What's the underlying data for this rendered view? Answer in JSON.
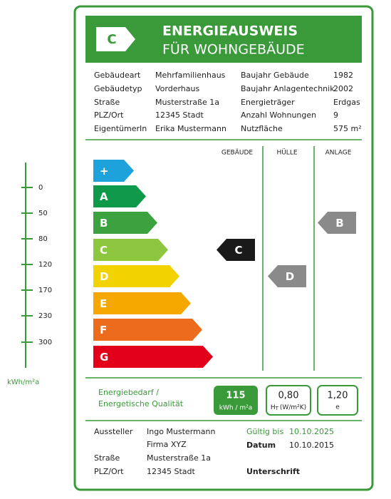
{
  "scale": {
    "ticks": [
      "0",
      "50",
      "80",
      "120",
      "170",
      "230",
      "300"
    ],
    "unit": "kWh/m²a"
  },
  "header": {
    "class_badge": "C",
    "title": "ENERGIEAUSWEIS",
    "subtitle": "FÜR WOHNGEBÄUDE"
  },
  "info": [
    [
      "Gebäudeart",
      "Mehrfamilienhaus",
      "Baujahr Gebäude",
      "1982"
    ],
    [
      "Gebäudetyp",
      "Vorderhaus",
      "Baujahr Anlagentechnik",
      "2002"
    ],
    [
      "Straße",
      "Musterstraße 1a",
      "Energieträger",
      "Erdgas"
    ],
    [
      "PLZ/Ort",
      "12345 Stadt",
      "Anzahl Wohnungen",
      "9"
    ],
    [
      "EigentümerIn",
      "Erika Mustermann",
      "Nutzfläche",
      "575 m²"
    ]
  ],
  "columns": [
    "GEBÄUDE",
    "HÜLLE",
    "ANLAGE"
  ],
  "classes": [
    {
      "label": "+",
      "color": "#1ea2dc"
    },
    {
      "label": "A",
      "color": "#0e9a4a"
    },
    {
      "label": "B",
      "color": "#3ba23f"
    },
    {
      "label": "C",
      "color": "#8dc63f"
    },
    {
      "label": "D",
      "color": "#f2d200"
    },
    {
      "label": "E",
      "color": "#f6a800"
    },
    {
      "label": "F",
      "color": "#ec6b1c"
    },
    {
      "label": "G",
      "color": "#e2001a"
    }
  ],
  "ratings": [
    {
      "label": "C",
      "color": "#1a1a1a"
    },
    {
      "label": "D",
      "color": "#8a8a8a"
    },
    {
      "label": "B",
      "color": "#8a8a8a"
    }
  ],
  "quality": {
    "label_line1": "Energiebedarf /",
    "label_line2": "Energetische Qualität",
    "demand_value": "115",
    "demand_unit": "kWh / m²a",
    "ht_value": "0,80",
    "ht_symbol": "H",
    "ht_sub": "T",
    "ht_unit": "(W/m²K)",
    "e_value": "1,20",
    "e_unit": "e"
  },
  "issuer": {
    "label": "Aussteller",
    "name": "Ingo Mustermann",
    "company": "Firma XYZ",
    "street_label": "Straße",
    "street": "Musterstraße 1a",
    "city_label": "PLZ/Ort",
    "city": "12345 Stadt",
    "valid_label": "Gültig bis",
    "valid": "10.10.2025",
    "date_label": "Datum",
    "date": "10.10.2015",
    "signature_label": "Unterschrift"
  }
}
